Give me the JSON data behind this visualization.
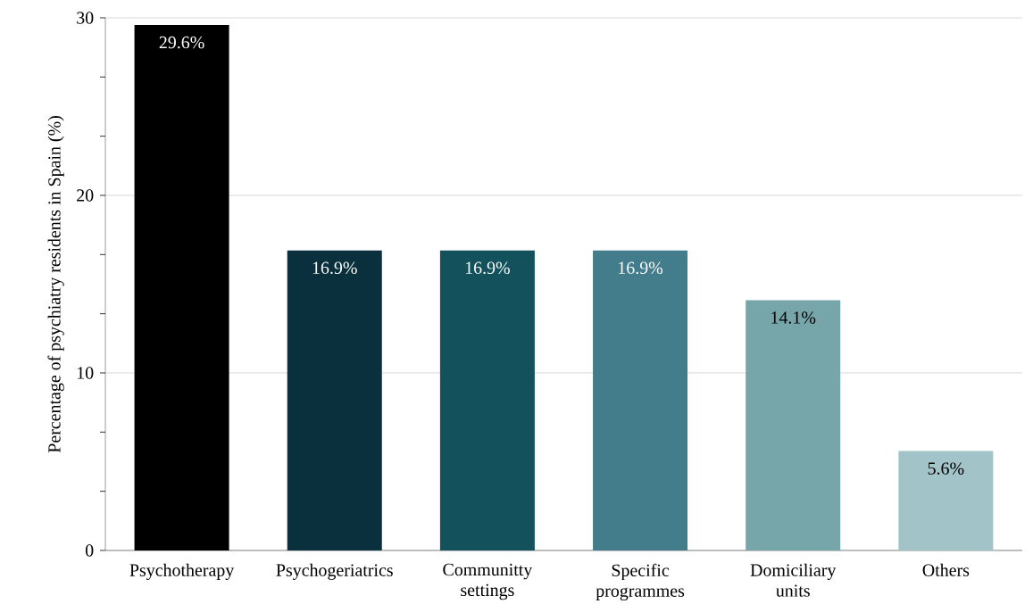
{
  "chart_data": {
    "type": "bar",
    "ylabel": "Percentage of psychiatry residents in Spain (%)",
    "categories": [
      "Psychotherapy",
      "Psychogeriatrics",
      "Communitty settings",
      "Specific programmes",
      "Domiciliary units",
      "Others"
    ],
    "values": [
      29.6,
      16.9,
      16.9,
      16.9,
      14.1,
      5.6
    ],
    "colors": [
      "#000000",
      "#0a303d",
      "#13525c",
      "#437d8b",
      "#76a5aa",
      "#a2c3c8"
    ],
    "value_labels": [
      "29.6%",
      "16.9%",
      "16.9%",
      "16.9%",
      "14.1%",
      "5.6%"
    ],
    "ylim": [
      0,
      30
    ],
    "yticks": [
      0,
      10,
      20,
      30
    ],
    "grid": "y"
  }
}
